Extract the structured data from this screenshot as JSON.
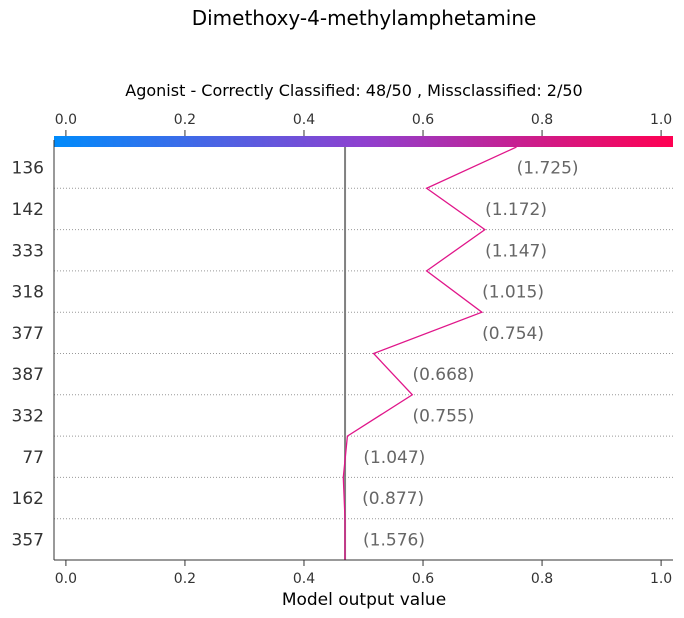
{
  "chart_data": {
    "type": "line",
    "title": "Dimethoxy-4-methylamphetamine",
    "subtitle": "Agonist - Correctly Classified: 48/50 , Missclassified: 2/50",
    "xlabel": "Model output value",
    "xlim": [
      -0.02,
      1.02
    ],
    "xticks": [
      "0.0",
      "0.2",
      "0.4",
      "0.6",
      "0.8",
      "1.0"
    ],
    "xtick_values": [
      0.0,
      0.2,
      0.4,
      0.6,
      0.8,
      1.0
    ],
    "base_value": 0.469,
    "features": [
      "136",
      "142",
      "333",
      "318",
      "377",
      "387",
      "332",
      "77",
      "162",
      "357"
    ],
    "feature_values": [
      "(1.725)",
      "(1.172)",
      "(1.147)",
      "(1.015)",
      "(0.754)",
      "(0.668)",
      "(0.755)",
      "(1.047)",
      "(0.877)",
      "(1.576)"
    ],
    "path_x": [
      0.757,
      0.606,
      0.704,
      0.606,
      0.699,
      0.517,
      0.582,
      0.473,
      0.466,
      0.469
    ],
    "line_color": "#e0168a",
    "base_line_color": "#808080",
    "colorbar_from": "#008bfb",
    "colorbar_mid": "#8f40cf",
    "colorbar_to": "#ff0052",
    "grid": "dotted horizontal row separators"
  }
}
